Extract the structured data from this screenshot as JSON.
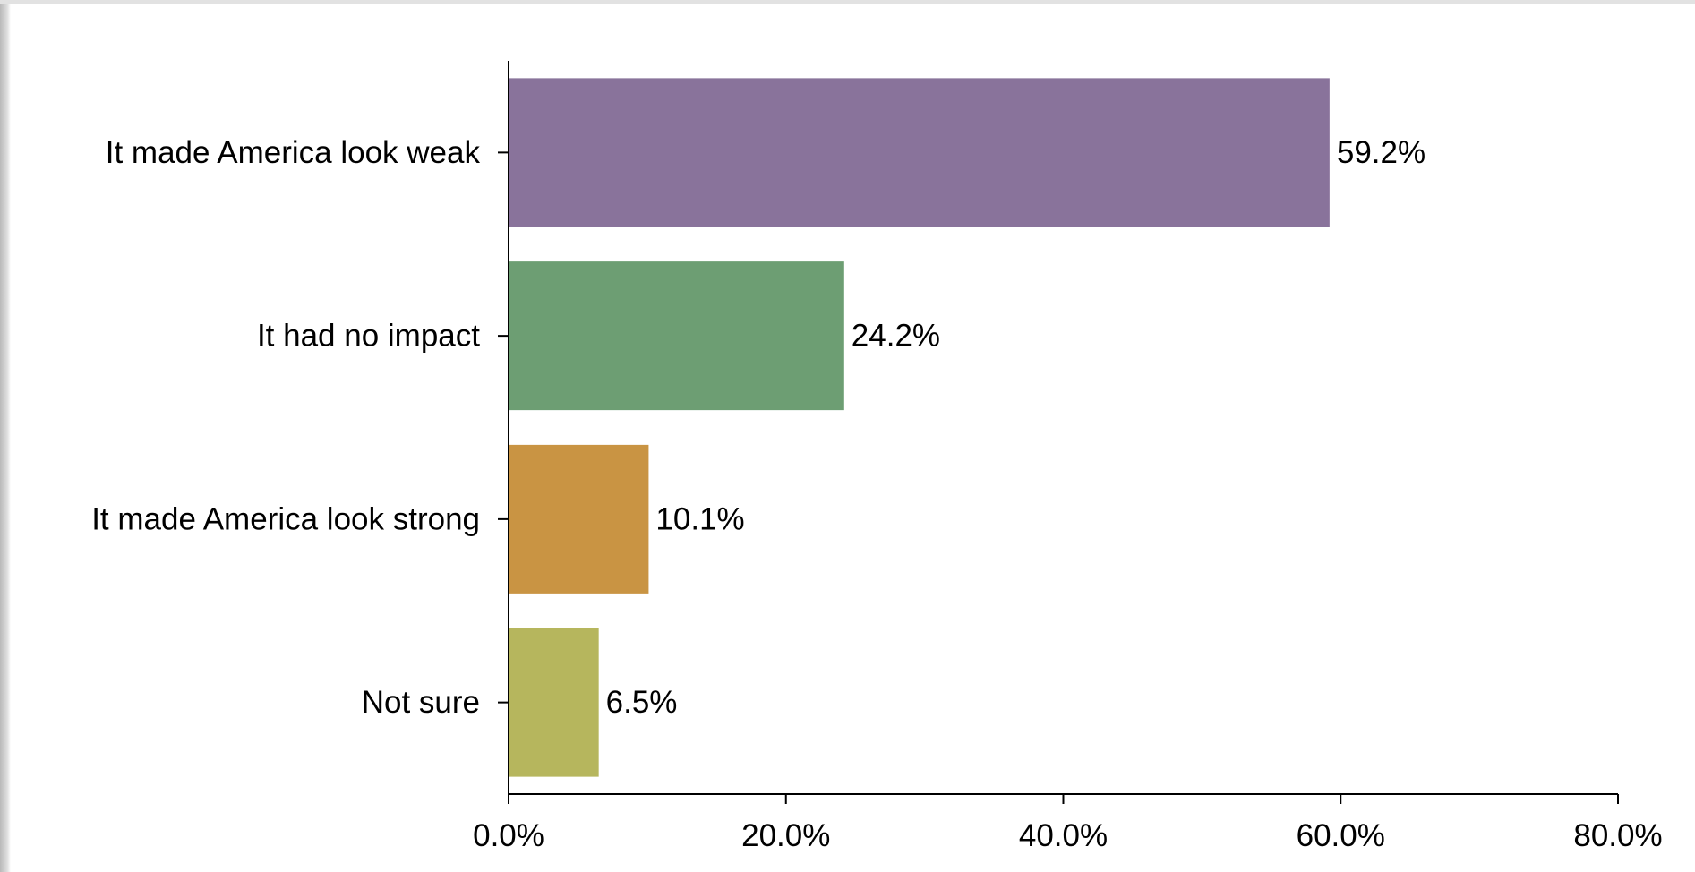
{
  "chart_data": {
    "type": "bar",
    "orientation": "horizontal",
    "categories": [
      "It made America look weak",
      "It had no impact",
      "It made America look strong",
      "Not sure"
    ],
    "values": [
      59.2,
      24.2,
      10.1,
      6.5
    ],
    "value_labels": [
      "59.2%",
      "24.2%",
      "10.1%",
      "6.5%"
    ],
    "colors": [
      "#89739b",
      "#6d9e73",
      "#c99443",
      "#b6b65d"
    ],
    "xlim": [
      0,
      80
    ],
    "xticks": [
      0,
      20,
      40,
      60,
      80
    ],
    "xtick_labels": [
      "0.0%",
      "20.0%",
      "40.0%",
      "60.0%",
      "80.0%"
    ],
    "title": "",
    "xlabel": "",
    "ylabel": "",
    "grid": false,
    "legend": "none"
  }
}
